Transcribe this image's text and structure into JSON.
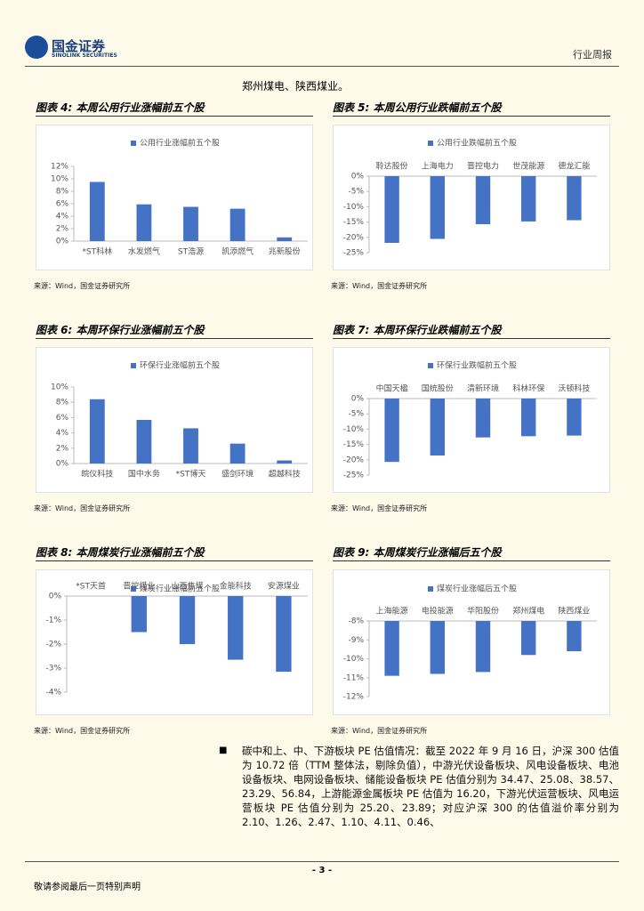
{
  "header": {
    "logo_cn": "国金证券",
    "logo_en": "SINOLINK SECURITIES",
    "report_type": "行业周报"
  },
  "intro_text": "郑州煤电、陕西煤业。",
  "chart_data": [
    {
      "type": "bar",
      "title": "图表 4: 本周公用行业涨幅前五个股",
      "categories": [
        "*ST科林",
        "水发燃气",
        "ST浩源",
        "凯添燃气",
        "兆新股份"
      ],
      "series": [
        {
          "name": "公用行业涨幅前五个股",
          "color": "#4472c4",
          "values": [
            9.5,
            5.9,
            5.5,
            5.2,
            0.6
          ]
        }
      ],
      "ylim": [
        0,
        12
      ],
      "yticks": [
        {
          "value": 0,
          "label": "0%"
        },
        {
          "value": 2,
          "label": "2%"
        },
        {
          "value": 4,
          "label": "4%"
        },
        {
          "value": 6,
          "label": "6%"
        },
        {
          "value": 8,
          "label": "8%"
        },
        {
          "value": 10,
          "label": "10%"
        },
        {
          "value": 12,
          "label": "12%"
        }
      ],
      "source": "来源：Wind，国金证券研究所"
    },
    {
      "type": "bar",
      "title": "图表 5: 本周公用行业跌幅前五个股",
      "categories": [
        "聆达股份",
        "上海电力",
        "晋控电力",
        "世茂能源",
        "德龙汇能"
      ],
      "series": [
        {
          "name": "公用行业跌幅前五个股",
          "color": "#4472c4",
          "values": [
            -21.8,
            -20.5,
            -15.7,
            -14.8,
            -14.4
          ]
        }
      ],
      "ylim": [
        -25,
        0
      ],
      "yticks": [
        {
          "value": 0,
          "label": "0%"
        },
        {
          "value": -5,
          "label": "-5%"
        },
        {
          "value": -10,
          "label": "-10%"
        },
        {
          "value": -15,
          "label": "-15%"
        },
        {
          "value": -20,
          "label": "-20%"
        },
        {
          "value": -25,
          "label": "-25%"
        }
      ],
      "source": "来源：Wind，国金证券研究所"
    },
    {
      "type": "bar",
      "title": "图表 6: 本周环保行业涨幅前五个股",
      "categories": [
        "皖仪科技",
        "国中水务",
        "*ST博天",
        "盛剑环境",
        "超越科技"
      ],
      "series": [
        {
          "name": "环保行业涨幅前五个股",
          "color": "#4472c4",
          "values": [
            8.4,
            5.7,
            4.6,
            2.6,
            0.4
          ]
        }
      ],
      "ylim": [
        0,
        10
      ],
      "yticks": [
        {
          "value": 0,
          "label": "0%"
        },
        {
          "value": 2,
          "label": "2%"
        },
        {
          "value": 4,
          "label": "4%"
        },
        {
          "value": 6,
          "label": "6%"
        },
        {
          "value": 8,
          "label": "8%"
        },
        {
          "value": 10,
          "label": "10%"
        }
      ],
      "source": "来源：Wind，国金证券研究所"
    },
    {
      "type": "bar",
      "title": "图表 7: 本周环保行业跌幅前五个股",
      "categories": [
        "中国天楹",
        "国统股份",
        "清新环境",
        "科林环保",
        "沃顿科技"
      ],
      "series": [
        {
          "name": "环保行业跌幅前五个股",
          "color": "#4472c4",
          "values": [
            -20.7,
            -18.6,
            -12.7,
            -12.3,
            -12.1
          ]
        }
      ],
      "ylim": [
        -25,
        0
      ],
      "yticks": [
        {
          "value": 0,
          "label": "0%"
        },
        {
          "value": -5,
          "label": "-5%"
        },
        {
          "value": -10,
          "label": "-10%"
        },
        {
          "value": -15,
          "label": "-15%"
        },
        {
          "value": -20,
          "label": "-20%"
        },
        {
          "value": -25,
          "label": "-25%"
        }
      ],
      "source": "来源：Wind，国金证券研究所"
    },
    {
      "type": "bar",
      "title": "图表 8: 本周煤炭行业涨幅前五个股",
      "categories": [
        "*ST天首",
        "晋控煤业",
        "山西焦煤",
        "金能科技",
        "安源煤业"
      ],
      "series": [
        {
          "name": "煤炭行业涨幅前五个股",
          "color": "#4472c4",
          "values": [
            0,
            -1.5,
            -2.0,
            -2.65,
            -3.15
          ]
        }
      ],
      "ylim": [
        -4,
        0
      ],
      "yticks": [
        {
          "value": 0,
          "label": "0%"
        },
        {
          "value": -1,
          "label": "-1%"
        },
        {
          "value": -2,
          "label": "-2%"
        },
        {
          "value": -3,
          "label": "-3%"
        },
        {
          "value": -4,
          "label": "-4%"
        }
      ],
      "source": "来源：Wind，国金证券研究所"
    },
    {
      "type": "bar",
      "title": "图表 9: 本周煤炭行业涨幅后五个股",
      "categories": [
        "上海能源",
        "电投能源",
        "华阳股份",
        "郑州煤电",
        "陕西煤业"
      ],
      "series": [
        {
          "name": "煤炭行业涨幅后五个股",
          "color": "#4472c4",
          "values": [
            -10.9,
            -10.8,
            -10.7,
            -9.8,
            -9.6
          ]
        }
      ],
      "ylim": [
        -12,
        -8
      ],
      "yticks": [
        {
          "value": -8,
          "label": "-8%"
        },
        {
          "value": -9,
          "label": "-9%"
        },
        {
          "value": -10,
          "label": "-10%"
        },
        {
          "value": -11,
          "label": "-11%"
        },
        {
          "value": -12,
          "label": "-12%"
        }
      ],
      "source": "来源：Wind，国金证券研究所"
    }
  ],
  "paragraph": "碳中和上、中、下游板块 PE 估值情况：截至 2022 年 9 月 16 日，沪深 300 估值为 10.72 倍（TTM 整体法，剔除负值），中游光伏设备板块、风电设备板块、电池设备板块、电网设备板块、储能设备板块 PE 估值分别为 34.47、25.08、38.57、23.29、56.84，上游能源金属板块 PE 估值为 16.20，下游光伏运营板块、风电运营板块 PE 估值分别为 25.20、23.89；对应沪深 300 的估值溢价率分别为 2.10、1.26、2.47、1.10、4.11、0.46、",
  "footer": {
    "page": "- 3 -",
    "disclaimer": "敬请参阅最后一页特别声明"
  }
}
